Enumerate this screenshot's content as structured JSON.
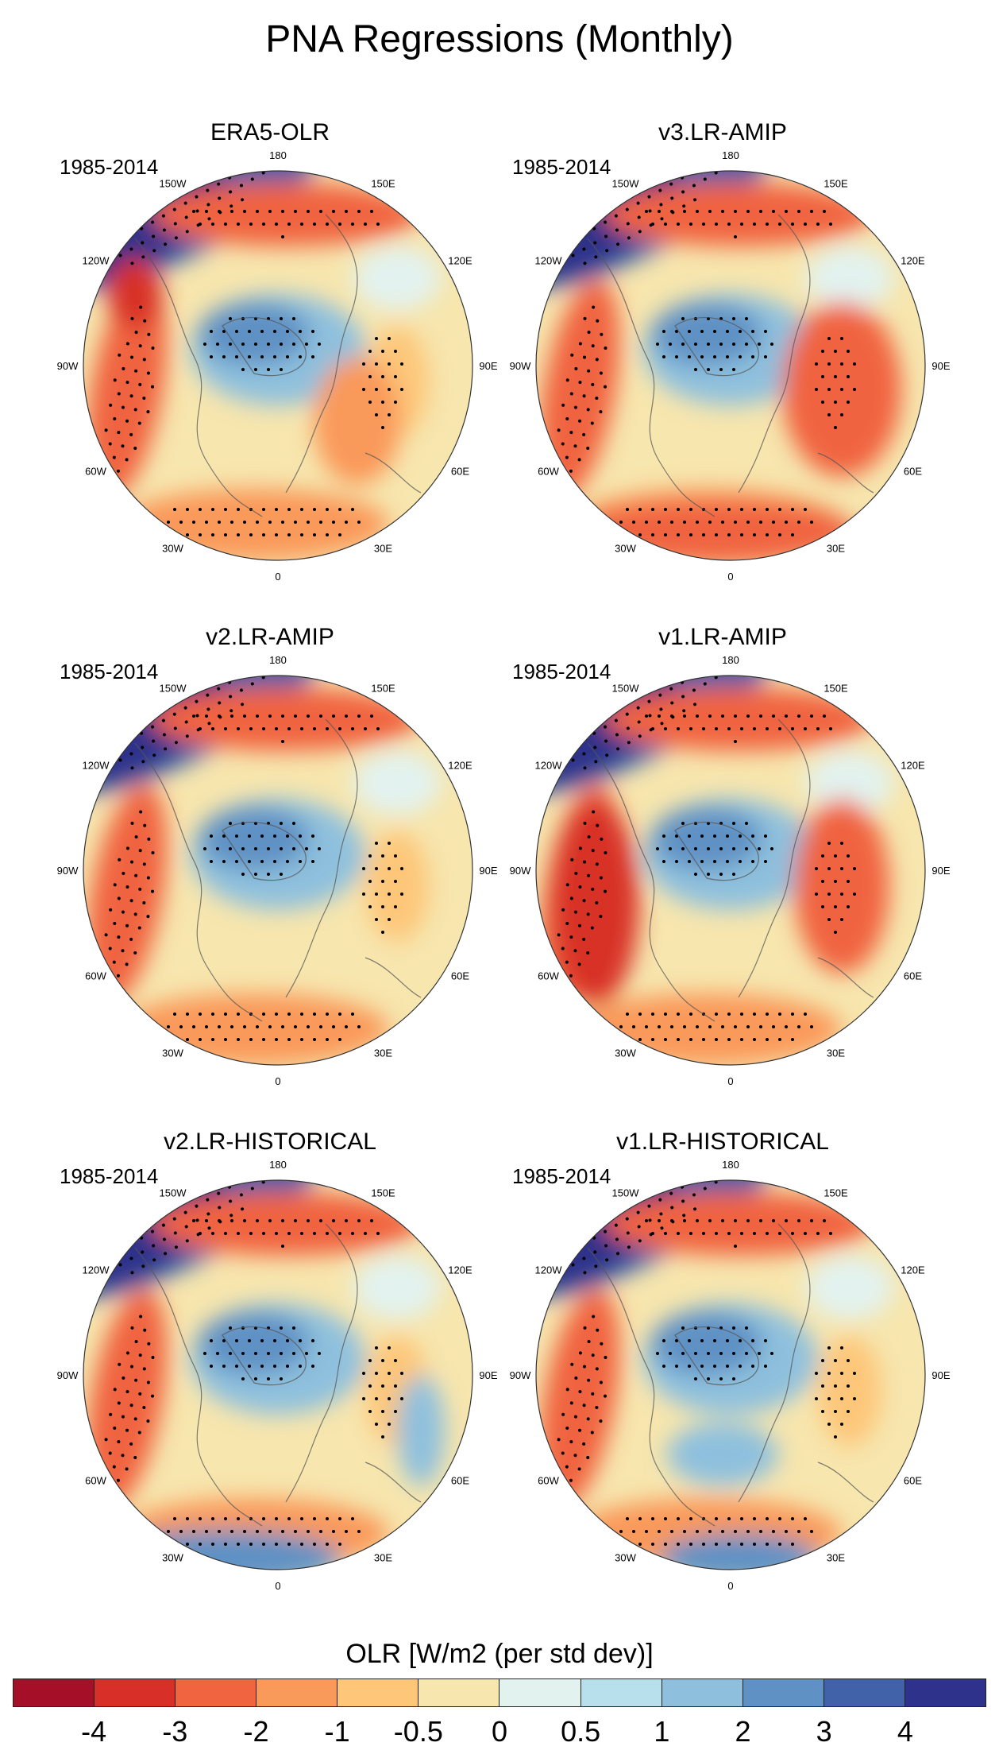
{
  "title": "PNA Regressions (Monthly)",
  "chart_data": {
    "type": "polar-stereographic-map-panels",
    "projection": "north polar stereographic",
    "variable": "OLR",
    "units": "W/m2 (per std dev)",
    "period": "1985-2014",
    "stippling": "statistically significant regions",
    "longitude_labels": [
      "180",
      "150E",
      "120E",
      "90E",
      "60E",
      "30E",
      "0",
      "30W",
      "60W",
      "90W",
      "120W",
      "150W"
    ],
    "panels": [
      {
        "id": "era5",
        "title": "ERA5-OLR",
        "period": "1985-2014"
      },
      {
        "id": "v3-amip",
        "title": "v3.LR-AMIP",
        "period": "1985-2014"
      },
      {
        "id": "v2-amip",
        "title": "v2.LR-AMIP",
        "period": "1985-2014"
      },
      {
        "id": "v1-amip",
        "title": "v1.LR-AMIP",
        "period": "1985-2014"
      },
      {
        "id": "v2-hist",
        "title": "v2.LR-HISTORICAL",
        "period": "1985-2014"
      },
      {
        "id": "v1-hist",
        "title": "v1.LR-HISTORICAL",
        "period": "1985-2014"
      }
    ],
    "colorbar": {
      "title": "OLR [W/m2 (per std dev)]",
      "levels": [
        "-4",
        "-3",
        "-2",
        "-1",
        "-0.5",
        "0",
        "0.5",
        "1",
        "2",
        "3",
        "4"
      ],
      "colors": [
        "#a50f27",
        "#d83028",
        "#f06440",
        "#f9995a",
        "#fdc679",
        "#f7e6ae",
        "#e2f2ef",
        "#b8e0ec",
        "#8ec0dd",
        "#5f91c4",
        "#4161a8",
        "#2e328a"
      ]
    }
  }
}
